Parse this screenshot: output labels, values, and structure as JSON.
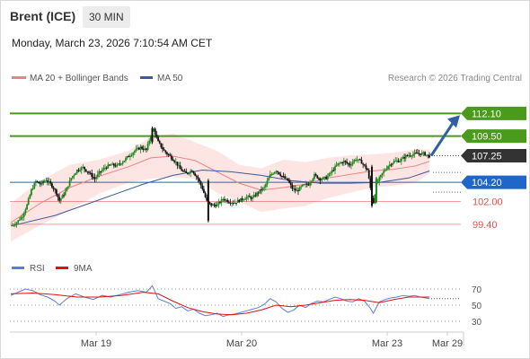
{
  "header": {
    "instrument": "Brent (ICE)",
    "interval": "30 MIN",
    "datetime": "Monday, March 23, 2026 7:10:54 AM CET"
  },
  "legend": {
    "ma20_label": "MA 20 + Bollinger Bands",
    "ma50_label": "MA 50",
    "credit": "Research © 2026 Trading Central",
    "ma20_color": "#f08080",
    "ma50_color": "#3b5a9a"
  },
  "chart_data": [
    {
      "type": "candlestick",
      "ylim": [
        96.4,
        114.5
      ],
      "last_price": 107.25,
      "levels": [
        {
          "value": 112.1,
          "label": "112.10",
          "style": "target",
          "color": "#4a9a1c"
        },
        {
          "value": 109.5,
          "label": "109.50",
          "style": "target",
          "color": "#4a9a1c"
        },
        {
          "value": 107.25,
          "label": "107.25",
          "style": "current",
          "color": "#333333"
        },
        {
          "value": 104.2,
          "label": "104.20",
          "style": "pivot",
          "color": "#1f66c8"
        },
        {
          "value": 102.0,
          "label": "102.00",
          "style": "support",
          "color": "#e84b4b"
        },
        {
          "value": 99.4,
          "label": "99.40",
          "style": "support",
          "color": "#e84b4b"
        }
      ],
      "x_ticks": [
        "Mar 19",
        "Mar 20",
        "Mar 23",
        "Mar 29"
      ],
      "close_path": [
        [
          0,
          99.2
        ],
        [
          4,
          99.6
        ],
        [
          8,
          100.4
        ],
        [
          11,
          101.6
        ],
        [
          14,
          103.3
        ],
        [
          17,
          104.3
        ],
        [
          20,
          104.0
        ],
        [
          24,
          104.5
        ],
        [
          28,
          103.8
        ],
        [
          31,
          103.0
        ],
        [
          33,
          102.1
        ],
        [
          37,
          103.1
        ],
        [
          41,
          104.7
        ],
        [
          45,
          105.6
        ],
        [
          49,
          105.9
        ],
        [
          53,
          105.3
        ],
        [
          57,
          104.6
        ],
        [
          60,
          105.3
        ],
        [
          64,
          105.9
        ],
        [
          68,
          106.2
        ],
        [
          72,
          106.1
        ],
        [
          76,
          106.6
        ],
        [
          80,
          107.2
        ],
        [
          84,
          107.8
        ],
        [
          88,
          108.2
        ],
        [
          92,
          107.9
        ],
        [
          95,
          109.6
        ],
        [
          97,
          110.3
        ],
        [
          100,
          108.8
        ],
        [
          104,
          107.8
        ],
        [
          108,
          107.2
        ],
        [
          112,
          106.5
        ],
        [
          115,
          105.7
        ],
        [
          119,
          105.2
        ],
        [
          123,
          105.6
        ],
        [
          127,
          104.6
        ],
        [
          130,
          103.5
        ],
        [
          133,
          102.0
        ],
        [
          136,
          101.6
        ],
        [
          140,
          101.6
        ],
        [
          144,
          102.3
        ],
        [
          148,
          102.0
        ],
        [
          152,
          101.9
        ],
        [
          156,
          102.2
        ],
        [
          160,
          102.5
        ],
        [
          164,
          102.4
        ],
        [
          168,
          103.1
        ],
        [
          172,
          103.6
        ],
        [
          176,
          105.0
        ],
        [
          180,
          105.6
        ],
        [
          184,
          104.9
        ],
        [
          188,
          104.4
        ],
        [
          191,
          103.5
        ],
        [
          194,
          103.2
        ],
        [
          198,
          103.8
        ],
        [
          202,
          104.0
        ],
        [
          206,
          105.0
        ],
        [
          210,
          104.6
        ],
        [
          214,
          104.7
        ],
        [
          218,
          105.5
        ],
        [
          222,
          106.3
        ],
        [
          226,
          106.6
        ],
        [
          230,
          106.2
        ],
        [
          234,
          106.9
        ],
        [
          238,
          106.5
        ],
        [
          242,
          105.6
        ],
        [
          245,
          102.5
        ],
        [
          246,
          101.9
        ],
        [
          248,
          104.0
        ],
        [
          252,
          105.2
        ],
        [
          256,
          106.1
        ],
        [
          260,
          106.6
        ],
        [
          264,
          106.7
        ],
        [
          268,
          107.2
        ],
        [
          272,
          107.4
        ],
        [
          276,
          107.5
        ],
        [
          280,
          107.5
        ],
        [
          284,
          107.2
        ]
      ],
      "ma20_path": [
        [
          0,
          99.6
        ],
        [
          20,
          101.8
        ],
        [
          40,
          103.6
        ],
        [
          60,
          104.9
        ],
        [
          80,
          106.0
        ],
        [
          95,
          107.0
        ],
        [
          110,
          107.2
        ],
        [
          125,
          106.7
        ],
        [
          140,
          105.4
        ],
        [
          155,
          104.1
        ],
        [
          170,
          103.3
        ],
        [
          185,
          103.6
        ],
        [
          200,
          104.0
        ],
        [
          215,
          104.7
        ],
        [
          230,
          105.1
        ],
        [
          245,
          105.5
        ],
        [
          260,
          105.7
        ],
        [
          275,
          106.1
        ],
        [
          284,
          106.6
        ]
      ],
      "ma50_path": [
        [
          0,
          99.2
        ],
        [
          30,
          100.4
        ],
        [
          60,
          102.2
        ],
        [
          90,
          104.0
        ],
        [
          110,
          105.0
        ],
        [
          130,
          105.6
        ],
        [
          150,
          105.4
        ],
        [
          170,
          105.0
        ],
        [
          190,
          104.4
        ],
        [
          210,
          104.1
        ],
        [
          230,
          104.1
        ],
        [
          250,
          104.2
        ],
        [
          270,
          104.7
        ],
        [
          284,
          105.5
        ]
      ],
      "bb_upper": [
        [
          0,
          101.8
        ],
        [
          20,
          104.4
        ],
        [
          40,
          106.2
        ],
        [
          60,
          106.8
        ],
        [
          80,
          107.8
        ],
        [
          95,
          109.4
        ],
        [
          110,
          109.8
        ],
        [
          125,
          108.8
        ],
        [
          140,
          107.8
        ],
        [
          155,
          106.2
        ],
        [
          170,
          105.8
        ],
        [
          185,
          106.8
        ],
        [
          200,
          106.5
        ],
        [
          215,
          107.0
        ],
        [
          230,
          107.3
        ],
        [
          245,
          107.4
        ],
        [
          260,
          107.6
        ],
        [
          275,
          108.0
        ],
        [
          284,
          108.0
        ]
      ],
      "bb_lower": [
        [
          0,
          97.4
        ],
        [
          20,
          99.3
        ],
        [
          40,
          101.0
        ],
        [
          60,
          102.9
        ],
        [
          80,
          104.2
        ],
        [
          95,
          104.6
        ],
        [
          110,
          104.8
        ],
        [
          125,
          104.6
        ],
        [
          140,
          103.0
        ],
        [
          155,
          102.0
        ],
        [
          170,
          100.8
        ],
        [
          185,
          101.2
        ],
        [
          200,
          101.5
        ],
        [
          215,
          102.4
        ],
        [
          230,
          103.0
        ],
        [
          245,
          103.6
        ],
        [
          260,
          103.8
        ],
        [
          275,
          104.2
        ],
        [
          284,
          105.2
        ]
      ]
    },
    {
      "type": "line",
      "name": "RSI indicator",
      "ylim": [
        20,
        80
      ],
      "y_ticks": [
        70,
        50,
        30
      ],
      "series": [
        {
          "name": "RSI",
          "color": "#5b7fd6",
          "points": [
            [
              0,
              62
            ],
            [
              5,
              66
            ],
            [
              10,
              70
            ],
            [
              15,
              68
            ],
            [
              20,
              63
            ],
            [
              25,
              60
            ],
            [
              30,
              55
            ],
            [
              33,
              50
            ],
            [
              38,
              58
            ],
            [
              44,
              64
            ],
            [
              50,
              60
            ],
            [
              56,
              57
            ],
            [
              62,
              62
            ],
            [
              68,
              60
            ],
            [
              74,
              63
            ],
            [
              80,
              66
            ],
            [
              86,
              68
            ],
            [
              92,
              66
            ],
            [
              96,
              74
            ],
            [
              100,
              58
            ],
            [
              104,
              55
            ],
            [
              108,
              52
            ],
            [
              112,
              46
            ],
            [
              116,
              48
            ],
            [
              120,
              43
            ],
            [
              124,
              45
            ],
            [
              128,
              40
            ],
            [
              132,
              37
            ],
            [
              136,
              38
            ],
            [
              140,
              40
            ],
            [
              144,
              36
            ],
            [
              148,
              38
            ],
            [
              152,
              39
            ],
            [
              156,
              41
            ],
            [
              160,
              43
            ],
            [
              164,
              45
            ],
            [
              168,
              47
            ],
            [
              172,
              51
            ],
            [
              176,
              58
            ],
            [
              180,
              54
            ],
            [
              184,
              46
            ],
            [
              188,
              41
            ],
            [
              192,
              44
            ],
            [
              196,
              50
            ],
            [
              200,
              47
            ],
            [
              204,
              52
            ],
            [
              208,
              55
            ],
            [
              212,
              54
            ],
            [
              216,
              57
            ],
            [
              220,
              60
            ],
            [
              224,
              58
            ],
            [
              228,
              55
            ],
            [
              232,
              54
            ],
            [
              236,
              58
            ],
            [
              240,
              55
            ],
            [
              244,
              46
            ],
            [
              246,
              40
            ],
            [
              250,
              54
            ],
            [
              254,
              57
            ],
            [
              258,
              59
            ],
            [
              262,
              60
            ],
            [
              266,
              62
            ],
            [
              270,
              61
            ],
            [
              274,
              62
            ],
            [
              278,
              60
            ],
            [
              284,
              58
            ]
          ]
        },
        {
          "name": "9MA",
          "color": "#e01010",
          "points": [
            [
              0,
              64
            ],
            [
              15,
              65
            ],
            [
              30,
              63
            ],
            [
              45,
              60
            ],
            [
              60,
              60
            ],
            [
              75,
              62
            ],
            [
              90,
              66
            ],
            [
              100,
              64
            ],
            [
              110,
              55
            ],
            [
              120,
              47
            ],
            [
              130,
              42
            ],
            [
              140,
              39
            ],
            [
              150,
              38
            ],
            [
              160,
              40
            ],
            [
              170,
              44
            ],
            [
              180,
              50
            ],
            [
              190,
              48
            ],
            [
              200,
              50
            ],
            [
              210,
              53
            ],
            [
              220,
              56
            ],
            [
              230,
              57
            ],
            [
              240,
              56
            ],
            [
              250,
              53
            ],
            [
              260,
              57
            ],
            [
              270,
              60
            ],
            [
              284,
              60
            ]
          ]
        }
      ],
      "legend": {
        "rsi_label": "RSI",
        "ma9_label": "9MA"
      },
      "tick_labels": {
        "t70": "70",
        "t50": "50",
        "t30": "30"
      }
    }
  ]
}
